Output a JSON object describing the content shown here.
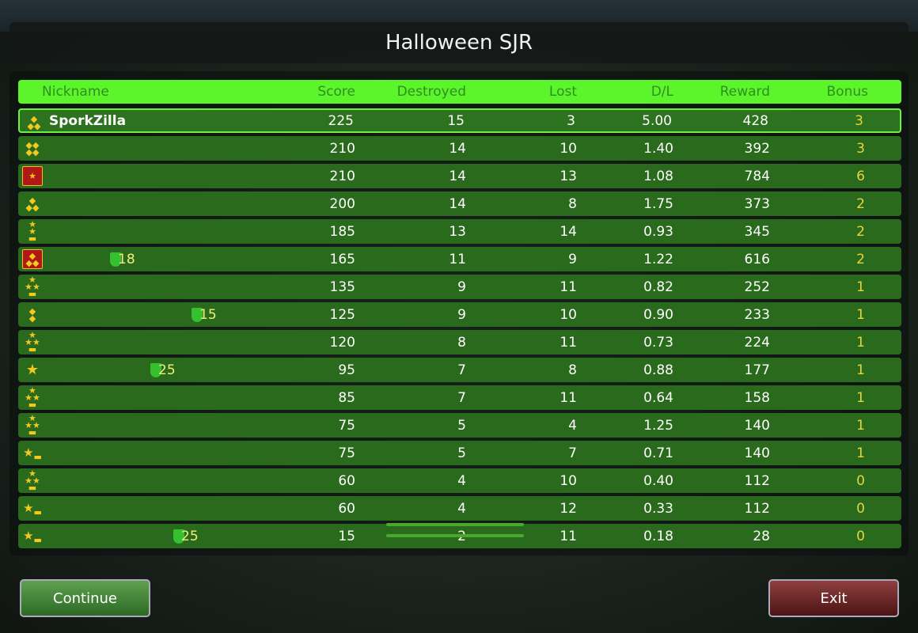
{
  "title": "Halloween SJR",
  "columns": [
    "Nickname",
    "Score",
    "Destroyed",
    "Lost",
    "D/L",
    "Reward",
    "Bonus"
  ],
  "rows": [
    {
      "rank_icon": "rank-3-diamonds",
      "nick": "SporkZilla",
      "score": "225",
      "destroyed": "15",
      "lost": "3",
      "dl": "5.00",
      "reward": "428",
      "bonus": "3",
      "highlight": true
    },
    {
      "rank_icon": "rank-4-diamonds",
      "nick": "",
      "score": "210",
      "destroyed": "14",
      "lost": "10",
      "dl": "1.40",
      "reward": "392",
      "bonus": "3"
    },
    {
      "rank_icon": "rank-red-star-emblem",
      "nick": "",
      "score": "210",
      "destroyed": "14",
      "lost": "13",
      "dl": "1.08",
      "reward": "784",
      "bonus": "6"
    },
    {
      "rank_icon": "rank-3-diamonds",
      "nick": "",
      "score": "200",
      "destroyed": "14",
      "lost": "8",
      "dl": "1.75",
      "reward": "373",
      "bonus": "2"
    },
    {
      "rank_icon": "rank-2-stars-bar",
      "nick": "",
      "score": "185",
      "destroyed": "13",
      "lost": "14",
      "dl": "0.93",
      "reward": "345",
      "bonus": "2"
    },
    {
      "rank_icon": "rank-red-3-diamonds-emblem",
      "nick": "",
      "score": "165",
      "destroyed": "11",
      "lost": "9",
      "dl": "1.22",
      "reward": "616",
      "bonus": "2",
      "level": "18"
    },
    {
      "rank_icon": "rank-3-stars-bar",
      "nick": "",
      "score": "135",
      "destroyed": "9",
      "lost": "11",
      "dl": "0.82",
      "reward": "252",
      "bonus": "1"
    },
    {
      "rank_icon": "rank-2-diamonds",
      "nick": "",
      "score": "125",
      "destroyed": "9",
      "lost": "10",
      "dl": "0.90",
      "reward": "233",
      "bonus": "1",
      "level": "15"
    },
    {
      "rank_icon": "rank-3-stars-bar",
      "nick": "",
      "score": "120",
      "destroyed": "8",
      "lost": "11",
      "dl": "0.73",
      "reward": "224",
      "bonus": "1"
    },
    {
      "rank_icon": "rank-gold-star",
      "nick": "",
      "score": "95",
      "destroyed": "7",
      "lost": "8",
      "dl": "0.88",
      "reward": "177",
      "bonus": "1",
      "level": "25"
    },
    {
      "rank_icon": "rank-3-stars-bar",
      "nick": "",
      "score": "85",
      "destroyed": "7",
      "lost": "11",
      "dl": "0.64",
      "reward": "158",
      "bonus": "1"
    },
    {
      "rank_icon": "rank-3-stars-bar",
      "nick": "",
      "score": "75",
      "destroyed": "5",
      "lost": "4",
      "dl": "1.25",
      "reward": "140",
      "bonus": "1"
    },
    {
      "rank_icon": "rank-star-bar",
      "nick": "",
      "score": "75",
      "destroyed": "5",
      "lost": "7",
      "dl": "0.71",
      "reward": "140",
      "bonus": "1"
    },
    {
      "rank_icon": "rank-3-stars-bar",
      "nick": "",
      "score": "60",
      "destroyed": "4",
      "lost": "10",
      "dl": "0.40",
      "reward": "112",
      "bonus": "0"
    },
    {
      "rank_icon": "rank-star-bar",
      "nick": "",
      "score": "60",
      "destroyed": "4",
      "lost": "12",
      "dl": "0.33",
      "reward": "112",
      "bonus": "0"
    },
    {
      "rank_icon": "rank-star-bar",
      "nick": "",
      "score": "15",
      "destroyed": "2",
      "lost": "11",
      "dl": "0.18",
      "reward": "28",
      "bonus": "0",
      "level": "25"
    }
  ],
  "buttons": {
    "continue": "Continue",
    "exit": "Exit"
  },
  "colors": {
    "header": "#5cf52c",
    "row": "#2a6a1c",
    "bonus": "#e8d43a",
    "continue": "#3f8a34",
    "exit": "#6e2020"
  }
}
